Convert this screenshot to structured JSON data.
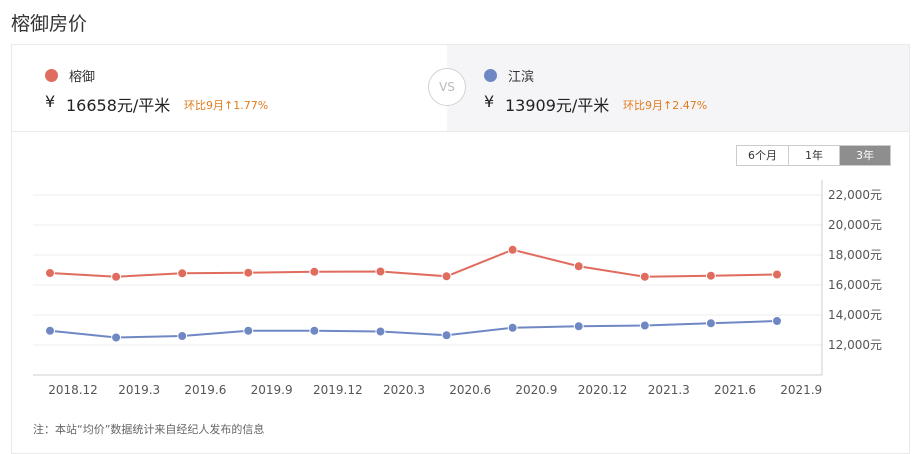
{
  "page": {
    "title": "榕御房价",
    "note": "注：本站“均价”数据统计来自经纪人发布的信息"
  },
  "compare": {
    "left": {
      "name": "榕御",
      "currency": "¥",
      "price": "16658元/平米",
      "change": "环比9月↑1.77%",
      "color": "#e06c5e"
    },
    "vs": "VS",
    "right": {
      "name": "江滨",
      "currency": "¥",
      "price": "13909元/平米",
      "change": "环比9月↑2.47%",
      "color": "#6f88c4"
    }
  },
  "range_tabs": [
    {
      "label": "6个月",
      "active": false
    },
    {
      "label": "1年",
      "active": false
    },
    {
      "label": "3年",
      "active": true
    }
  ],
  "chart_data": {
    "type": "line",
    "x": [
      "2018.11",
      "2019.2",
      "2019.5",
      "2019.8",
      "2019.11",
      "2020.2",
      "2020.5",
      "2020.8",
      "2020.11",
      "2021.2",
      "2021.5",
      "2021.8"
    ],
    "x_tick_labels": [
      "2018.12",
      "2019.3",
      "2019.6",
      "2019.9",
      "2019.12",
      "2020.3",
      "2020.6",
      "2020.9",
      "2020.12",
      "2021.3",
      "2021.6",
      "2021.9"
    ],
    "series": [
      {
        "name": "榕御",
        "color": "#e06c5e",
        "values": [
          16800,
          16550,
          16780,
          16820,
          16880,
          16900,
          16580,
          18350,
          17250,
          16550,
          16620,
          16700
        ]
      },
      {
        "name": "江滨",
        "color": "#6f88c4",
        "values": [
          12950,
          12500,
          12600,
          12950,
          12950,
          12900,
          12650,
          13150,
          13250,
          13300,
          13450,
          13600
        ]
      }
    ],
    "y_ticks": [
      12000,
      14000,
      16000,
      18000,
      20000,
      22000
    ],
    "y_tick_labels": [
      "12,000元",
      "14,000元",
      "16,000元",
      "18,000元",
      "20,000元",
      "22,000元"
    ],
    "ylim": [
      10000,
      22000
    ],
    "y_axis_position": "right",
    "grid": true
  }
}
